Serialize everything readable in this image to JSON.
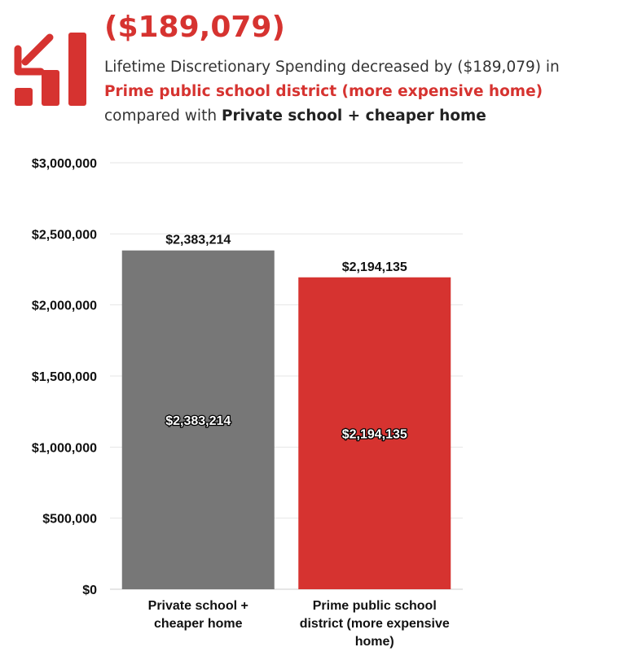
{
  "header": {
    "icon": "chart-decrease-arrow-icon",
    "headline": "($189,079)",
    "summary_prefix": "Lifetime Discretionary Spending decreased by ($189,079) in ",
    "summary_highlight": "Prime public school district (more expensive home)",
    "summary_middle": " compared with ",
    "summary_compare": "Private school + cheaper home"
  },
  "colors": {
    "accent": "#d63330",
    "bar_private": "#777777",
    "bar_public": "#d63330",
    "grid": "#e6e6e6"
  },
  "chart_data": {
    "type": "bar",
    "categories": [
      "Private school + cheaper home",
      "Prime public school district (more expensive home)"
    ],
    "category_label_lines": [
      [
        "Private school +",
        "cheaper home"
      ],
      [
        "Prime public school",
        "district (more expensive",
        "home)"
      ]
    ],
    "values": [
      2383214,
      2194135
    ],
    "value_labels": [
      "$2,383,214",
      "$2,194,135"
    ],
    "ylim": [
      0,
      3000000
    ],
    "y_ticks": [
      0,
      500000,
      1000000,
      1500000,
      2000000,
      2500000,
      3000000
    ],
    "y_tick_labels": [
      "$0",
      "$500,000",
      "$1,000,000",
      "$1,500,000",
      "$2,000,000",
      "$2,500,000",
      "$3,000,000"
    ],
    "grid": true,
    "bar_colors": [
      "#777777",
      "#d63330"
    ]
  }
}
